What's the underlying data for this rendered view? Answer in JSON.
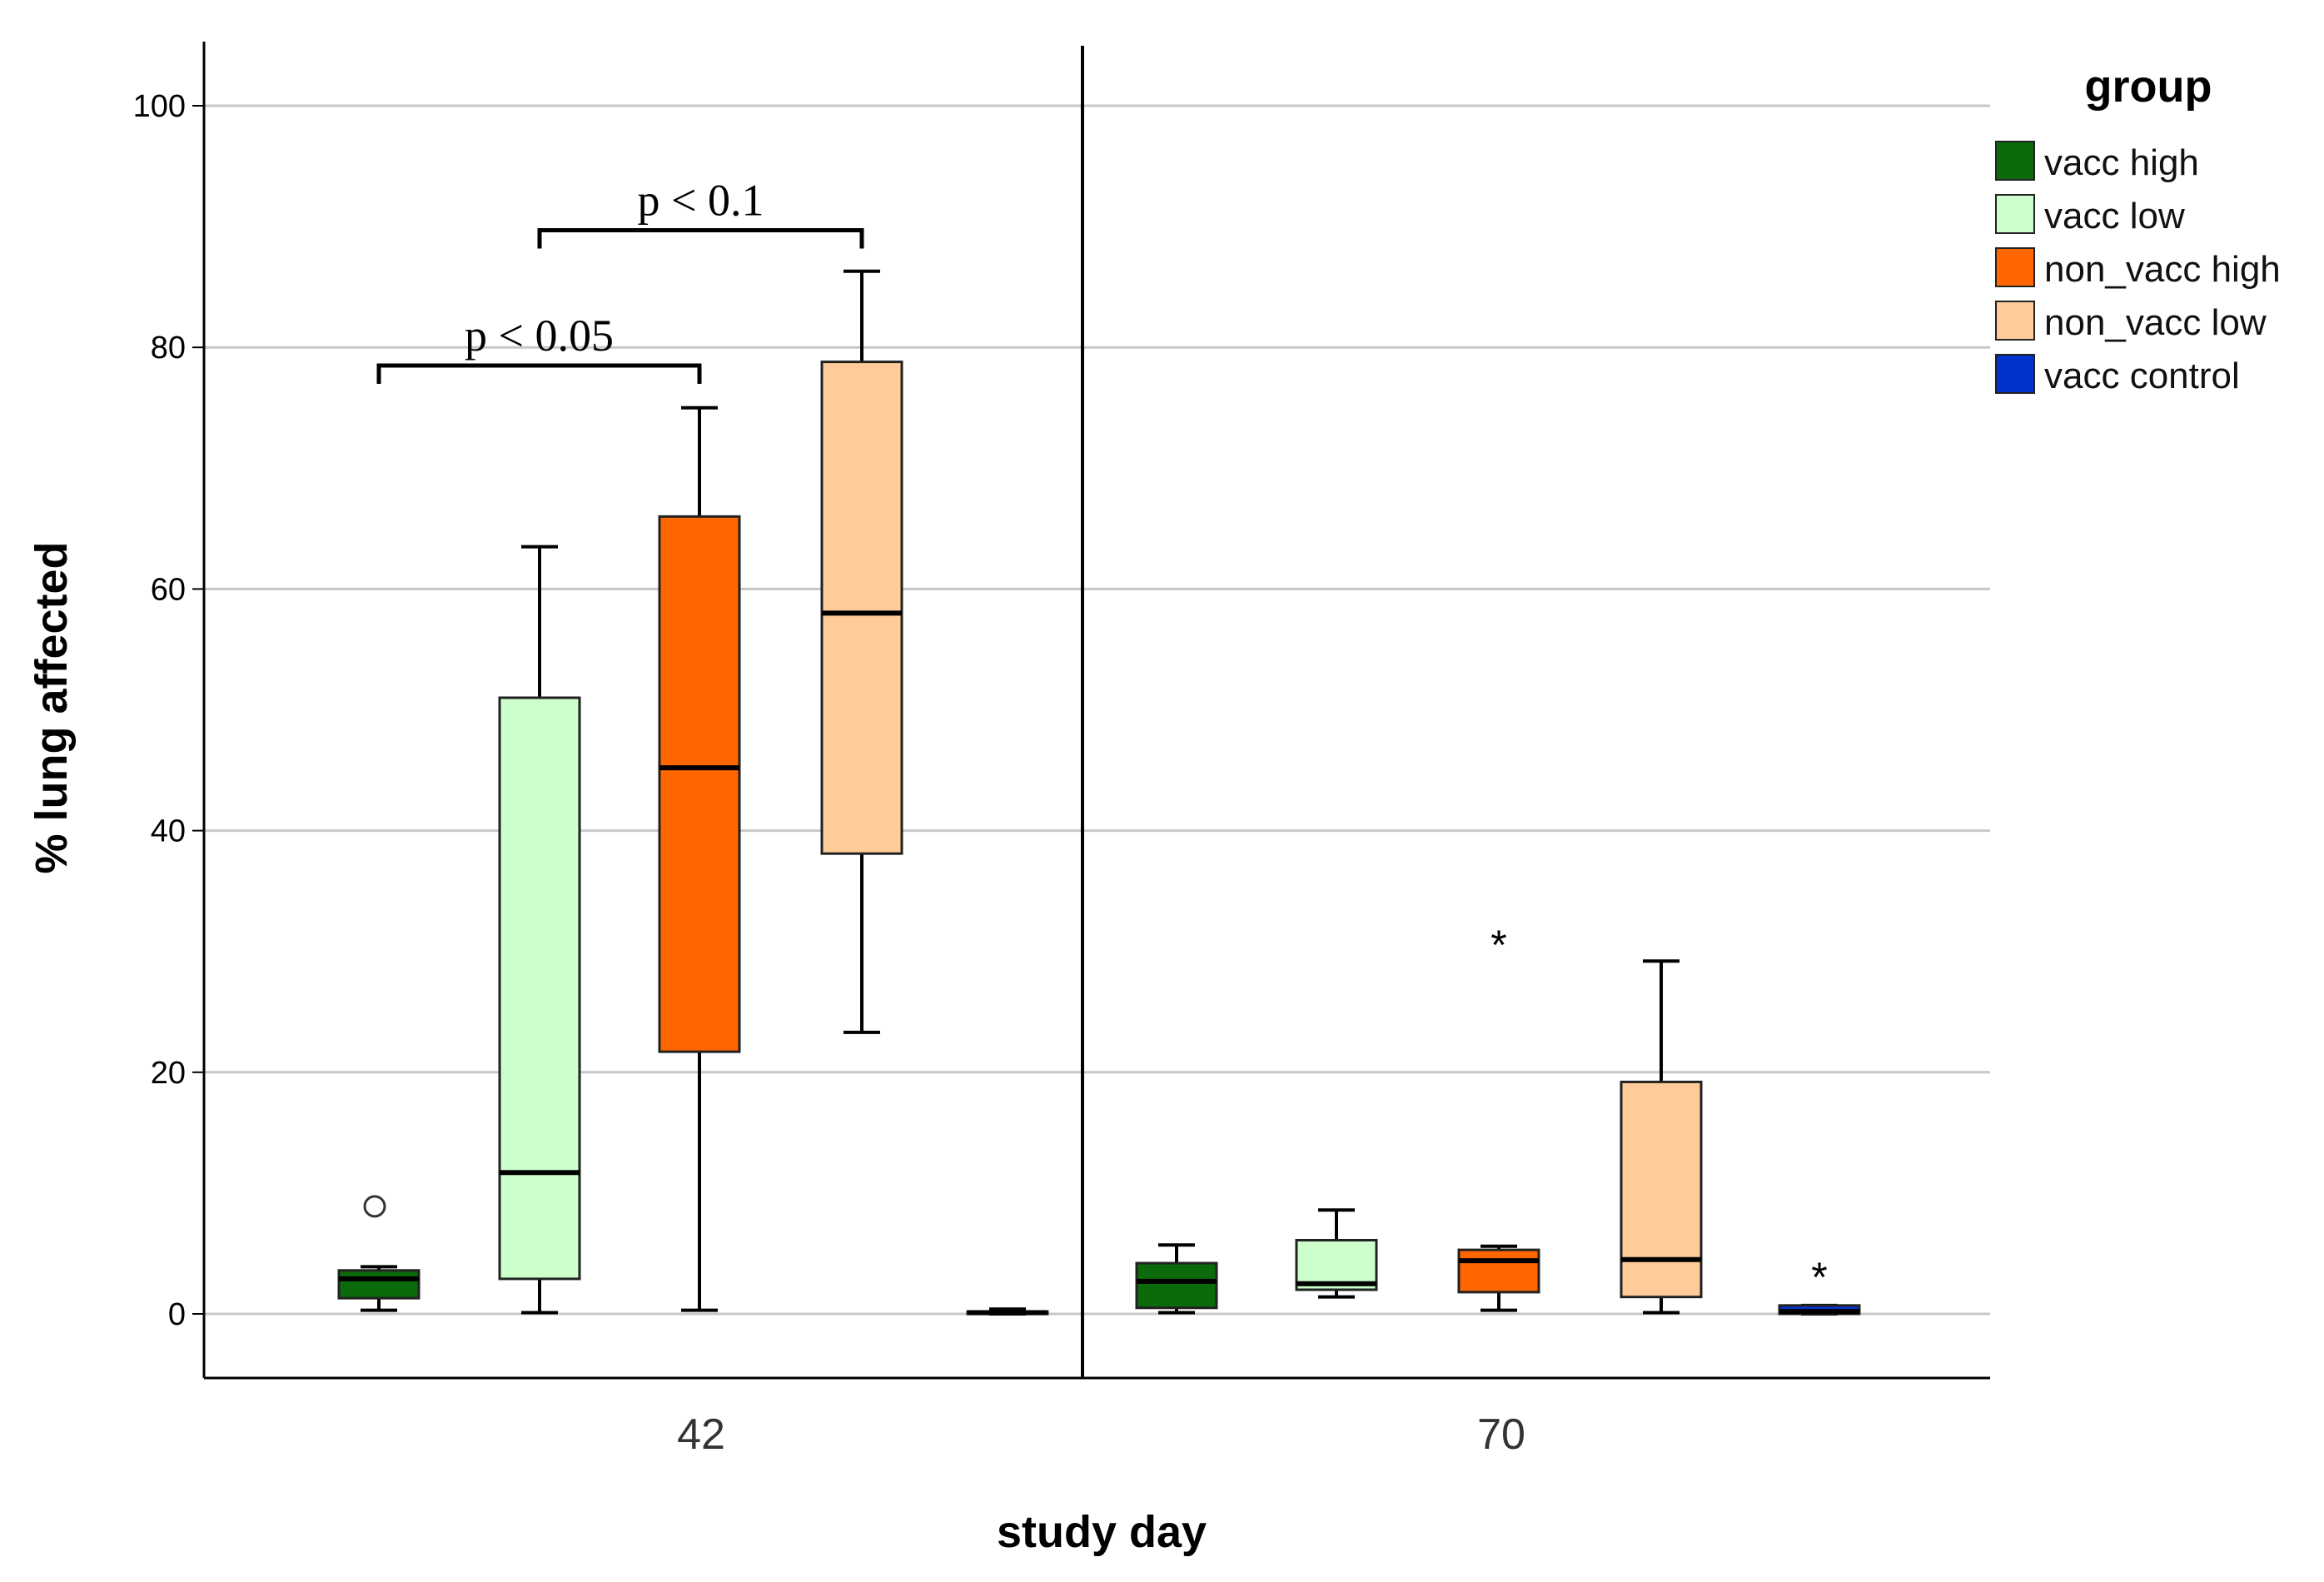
{
  "chart_data": {
    "type": "box",
    "ylabel": "% lung affected",
    "xlabel": "study day",
    "ylim": [
      -5,
      105
    ],
    "yticks": [
      "0",
      "20",
      "40",
      "60",
      "80",
      "100"
    ],
    "ytick_values": [
      0,
      20,
      40,
      60,
      80,
      100
    ],
    "grid": true,
    "legend": {
      "title": "group",
      "position": "top-right",
      "items": [
        {
          "label": "vacc high",
          "color": "#0b6a0b"
        },
        {
          "label": "vacc low",
          "color": "#ccffcc"
        },
        {
          "label": "non_vacc high",
          "color": "#ff6600"
        },
        {
          "label": "non_vacc low",
          "color": "#ffcc99"
        },
        {
          "label": "vacc control",
          "color": "#0033cc"
        }
      ]
    },
    "categories": [
      "42",
      "70"
    ],
    "groups": [
      {
        "day": "42",
        "boxes": [
          {
            "group": "vacc high",
            "min": 0.3,
            "q1": 1.3,
            "median": 2.9,
            "q3": 3.6,
            "max": 3.9,
            "outliers": [
              {
                "value": 8.9,
                "marker": "circle"
              }
            ]
          },
          {
            "group": "vacc low",
            "min": 0.1,
            "q1": 2.9,
            "median": 11.7,
            "q3": 51.0,
            "max": 63.5,
            "outliers": []
          },
          {
            "group": "non_vacc high",
            "min": 0.3,
            "q1": 21.7,
            "median": 45.2,
            "q3": 66.0,
            "max": 75.0,
            "outliers": []
          },
          {
            "group": "non_vacc low",
            "min": 23.3,
            "q1": 38.1,
            "median": 58.0,
            "q3": 78.8,
            "max": 86.3,
            "outliers": []
          },
          {
            "group": "vacc control",
            "min": 0.0,
            "q1": 0.0,
            "median": 0.1,
            "q3": 0.2,
            "max": 0.4,
            "outliers": []
          }
        ]
      },
      {
        "day": "70",
        "boxes": [
          {
            "group": "vacc high",
            "min": 0.1,
            "q1": 0.5,
            "median": 2.7,
            "q3": 4.2,
            "max": 5.7,
            "outliers": []
          },
          {
            "group": "vacc low",
            "min": 1.4,
            "q1": 2.0,
            "median": 2.5,
            "q3": 6.1,
            "max": 8.6,
            "outliers": []
          },
          {
            "group": "non_vacc high",
            "min": 0.3,
            "q1": 1.8,
            "median": 4.4,
            "q3": 5.3,
            "max": 5.6,
            "outliers": [
              {
                "value": 31.0,
                "marker": "star"
              }
            ]
          },
          {
            "group": "non_vacc low",
            "min": 0.1,
            "q1": 1.4,
            "median": 4.5,
            "q3": 19.2,
            "max": 29.2,
            "outliers": []
          },
          {
            "group": "vacc control",
            "min": 0.0,
            "q1": 0.0,
            "median": 0.2,
            "q3": 0.7,
            "max": 0.7,
            "outliers": [
              {
                "value": 3.5,
                "marker": "star"
              }
            ]
          }
        ]
      }
    ],
    "annotations": [
      {
        "text": "p < 0.05",
        "day": "42",
        "from_group": "vacc high",
        "to_group": "non_vacc high",
        "y": 78.5
      },
      {
        "text": "p < 0.1",
        "day": "42",
        "from_group": "vacc low",
        "to_group": "non_vacc low",
        "y": 89.7
      }
    ]
  }
}
